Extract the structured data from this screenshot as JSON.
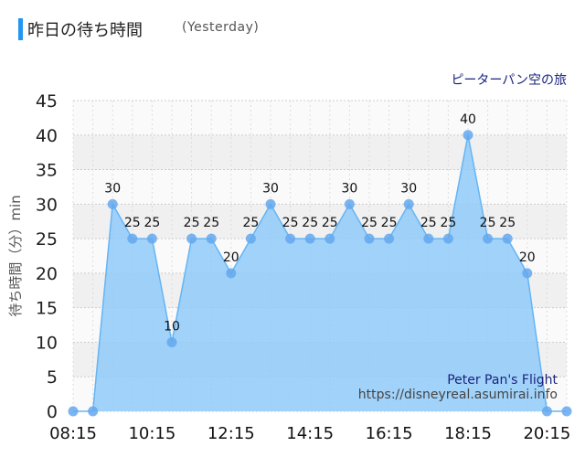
{
  "header": {
    "title": "昨日の待ち時間",
    "subtitle": "(Yesterday)"
  },
  "colors": {
    "accent": "#2196f3",
    "line": "#64b5f6",
    "fill": "#90caf9",
    "point": "#64a8ee",
    "grid": "#cccccc",
    "band": "#f0f0f0",
    "credit": "#1a237e"
  },
  "chart_data": {
    "type": "area",
    "title": "ピーターパン空の旅",
    "ylabel": "待ち時間（分）min",
    "xlabel": "",
    "ylim": [
      0,
      45
    ],
    "yticks": [
      0,
      5,
      10,
      15,
      20,
      25,
      30,
      35,
      40,
      45
    ],
    "grid": true,
    "x": [
      "08:15",
      "08:45",
      "09:15",
      "09:45",
      "10:15",
      "10:45",
      "11:15",
      "11:45",
      "12:15",
      "12:45",
      "13:15",
      "13:45",
      "14:15",
      "14:45",
      "15:15",
      "15:45",
      "16:15",
      "16:45",
      "17:15",
      "17:45",
      "18:15",
      "18:45",
      "19:15",
      "19:45",
      "20:15",
      "20:45"
    ],
    "xtick_labels": [
      "08:15",
      "10:15",
      "12:15",
      "14:15",
      "16:15",
      "18:15",
      "20:15"
    ],
    "values": [
      0,
      0,
      30,
      25,
      25,
      10,
      25,
      25,
      20,
      25,
      30,
      25,
      25,
      25,
      30,
      25,
      25,
      30,
      25,
      25,
      40,
      25,
      25,
      20,
      0,
      0
    ],
    "data_labels": [
      null,
      null,
      "30",
      "25",
      "25",
      "10",
      "25",
      "25",
      "20",
      "25",
      "30",
      "25",
      "25",
      "25",
      "30",
      "25",
      "25",
      "30",
      "25",
      "25",
      "40",
      "25",
      "25",
      "20",
      null,
      null
    ],
    "annotation_name": "Peter Pan's Flight",
    "annotation_url": "https://disneyreal.asumirai.info"
  }
}
